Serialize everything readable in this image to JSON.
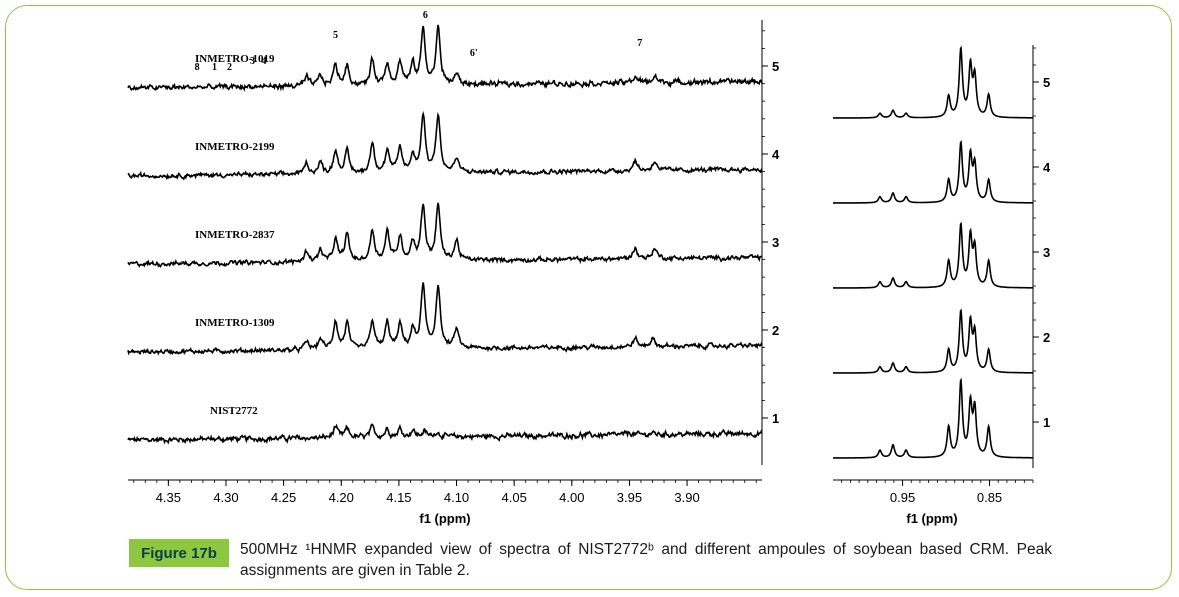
{
  "figure": {
    "badge": "Figure 17b",
    "caption": "500MHz ¹HNMR expanded view of spectra of NIST2772ᵇ and different ampoules of soybean based CRM. Peak assignments are given in Table 2."
  },
  "colors": {
    "accent": "#8dc63f",
    "badge_text": "#0b3d4a",
    "trace": "#000000"
  },
  "chart_data": [
    {
      "type": "line",
      "xlabel": "f1 (ppm)",
      "xlim": [
        4.385,
        3.835
      ],
      "x_reversed": true,
      "xticks": [
        4.35,
        4.3,
        4.25,
        4.2,
        4.15,
        4.1,
        4.05,
        4.0,
        3.95,
        3.9
      ],
      "xtick_labels": [
        "4.35",
        "4.30",
        "4.25",
        "4.20",
        "4.15",
        "4.10",
        "4.05",
        "4.00",
        "3.95",
        "3.90"
      ],
      "yticks": [
        1,
        2,
        3,
        4,
        5
      ],
      "ytick_labels": [
        "1",
        "2",
        "3",
        "4",
        "5"
      ],
      "series": [
        {
          "name": "NIST2772",
          "offset": 1,
          "noise": 0.03,
          "peaks": [
            [
              4.205,
              0.2
            ],
            [
              4.195,
              0.16
            ],
            [
              4.173,
              0.18
            ],
            [
              4.16,
              0.15
            ],
            [
              4.149,
              0.15
            ],
            [
              4.138,
              0.12
            ],
            [
              4.128,
              0.1
            ],
            [
              4.117,
              0.09
            ],
            [
              3.95,
              0.04
            ],
            [
              3.93,
              0.03
            ]
          ]
        },
        {
          "name": "INMETRO-1309",
          "offset": 2,
          "noise": 0.025,
          "peaks": [
            [
              4.23,
              0.15
            ],
            [
              4.218,
              0.2
            ],
            [
              4.205,
              0.52
            ],
            [
              4.195,
              0.48
            ],
            [
              4.173,
              0.52
            ],
            [
              4.16,
              0.48
            ],
            [
              4.149,
              0.44
            ],
            [
              4.138,
              0.34
            ],
            [
              4.129,
              1.15
            ],
            [
              4.116,
              1.15
            ],
            [
              4.1,
              0.35
            ],
            [
              3.945,
              0.15
            ],
            [
              3.93,
              0.15
            ]
          ]
        },
        {
          "name": "INMETRO-2837",
          "offset": 3,
          "noise": 0.025,
          "peaks": [
            [
              4.23,
              0.2
            ],
            [
              4.218,
              0.22
            ],
            [
              4.205,
              0.4
            ],
            [
              4.195,
              0.5
            ],
            [
              4.173,
              0.56
            ],
            [
              4.16,
              0.53
            ],
            [
              4.149,
              0.44
            ],
            [
              4.138,
              0.33
            ],
            [
              4.129,
              1.0
            ],
            [
              4.116,
              1.0
            ],
            [
              4.1,
              0.36
            ],
            [
              3.945,
              0.2
            ],
            [
              3.928,
              0.2
            ]
          ]
        },
        {
          "name": "INMETRO-2199",
          "offset": 4,
          "noise": 0.025,
          "peaks": [
            [
              4.23,
              0.2
            ],
            [
              4.218,
              0.2
            ],
            [
              4.205,
              0.42
            ],
            [
              4.195,
              0.4
            ],
            [
              4.173,
              0.55
            ],
            [
              4.16,
              0.4
            ],
            [
              4.149,
              0.45
            ],
            [
              4.138,
              0.3
            ],
            [
              4.129,
              1.05
            ],
            [
              4.116,
              1.05
            ],
            [
              4.1,
              0.25
            ],
            [
              3.945,
              0.18
            ],
            [
              3.928,
              0.18
            ]
          ]
        },
        {
          "name": "INMETRO-1019",
          "offset": 5,
          "noise": 0.03,
          "peaks": [
            [
              4.23,
              0.15
            ],
            [
              4.218,
              0.18
            ],
            [
              4.205,
              0.38
            ],
            [
              4.195,
              0.36
            ],
            [
              4.173,
              0.45
            ],
            [
              4.16,
              0.4
            ],
            [
              4.149,
              0.42
            ],
            [
              4.138,
              0.35
            ],
            [
              4.129,
              1.0
            ],
            [
              4.116,
              1.02
            ],
            [
              4.1,
              0.18
            ],
            [
              3.945,
              0.12
            ],
            [
              3.928,
              0.12
            ]
          ]
        }
      ],
      "annotations": [
        {
          "text": "8",
          "x": 4.325
        },
        {
          "text": "1",
          "x": 4.31
        },
        {
          "text": "2",
          "x": 4.297
        },
        {
          "text": "3",
          "x": 4.277
        },
        {
          "text": "4",
          "x": 4.267
        },
        {
          "text": "5",
          "x": 4.205
        },
        {
          "text": "6",
          "x": 4.127
        },
        {
          "text": "6'",
          "x": 4.085
        },
        {
          "text": "7",
          "x": 3.941
        }
      ]
    },
    {
      "type": "line",
      "xlabel": "f1 (ppm)",
      "xlim": [
        1.03,
        0.8
      ],
      "x_reversed": true,
      "xticks": [
        0.95,
        0.85
      ],
      "xtick_labels": [
        "0.95",
        "0.85"
      ],
      "yticks": [
        1,
        2,
        3,
        4,
        5
      ],
      "ytick_labels": [
        "1",
        "2",
        "3",
        "4",
        "5"
      ],
      "series": [
        {
          "name": "1",
          "offset": 1,
          "peaks": [
            [
              0.976,
              0.1
            ],
            [
              0.961,
              0.17
            ],
            [
              0.946,
              0.1
            ],
            [
              0.897,
              0.4
            ],
            [
              0.883,
              1.0
            ],
            [
              0.872,
              0.68
            ],
            [
              0.867,
              0.62
            ],
            [
              0.851,
              0.4
            ]
          ]
        },
        {
          "name": "2",
          "offset": 2,
          "peaks": [
            [
              0.976,
              0.08
            ],
            [
              0.961,
              0.13
            ],
            [
              0.946,
              0.08
            ],
            [
              0.897,
              0.3
            ],
            [
              0.883,
              0.8
            ],
            [
              0.872,
              0.64
            ],
            [
              0.867,
              0.5
            ],
            [
              0.851,
              0.3
            ]
          ]
        },
        {
          "name": "3",
          "offset": 3,
          "peaks": [
            [
              0.976,
              0.08
            ],
            [
              0.961,
              0.13
            ],
            [
              0.946,
              0.08
            ],
            [
              0.897,
              0.35
            ],
            [
              0.883,
              0.82
            ],
            [
              0.872,
              0.66
            ],
            [
              0.867,
              0.5
            ],
            [
              0.851,
              0.35
            ]
          ]
        },
        {
          "name": "4",
          "offset": 4,
          "peaks": [
            [
              0.976,
              0.08
            ],
            [
              0.961,
              0.13
            ],
            [
              0.946,
              0.08
            ],
            [
              0.897,
              0.3
            ],
            [
              0.883,
              0.78
            ],
            [
              0.872,
              0.6
            ],
            [
              0.867,
              0.48
            ],
            [
              0.851,
              0.3
            ]
          ]
        },
        {
          "name": "5",
          "offset": 5,
          "peaks": [
            [
              0.976,
              0.06
            ],
            [
              0.961,
              0.1
            ],
            [
              0.946,
              0.06
            ],
            [
              0.897,
              0.28
            ],
            [
              0.883,
              0.9
            ],
            [
              0.872,
              0.66
            ],
            [
              0.867,
              0.52
            ],
            [
              0.851,
              0.3
            ]
          ]
        }
      ]
    }
  ]
}
